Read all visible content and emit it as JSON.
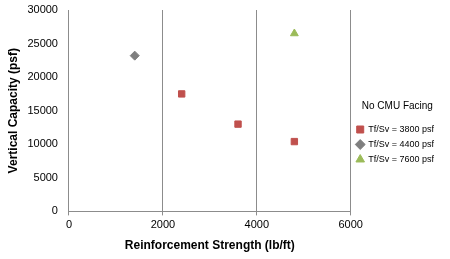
{
  "chart_data": {
    "type": "scatter",
    "x_label": "Reinforcement Strength (lb/ft)",
    "y_label": "Vertical Capacity (psf)",
    "annotation": "No CMU Facing",
    "xlim": [
      0,
      6000
    ],
    "xticks": [
      0,
      2000,
      4000,
      6000
    ],
    "ylim": [
      0,
      30000
    ],
    "yticks": [
      0,
      5000,
      10000,
      15000,
      20000,
      25000,
      30000
    ],
    "grid": true,
    "legend": "right",
    "series": [
      {
        "name": "Tf/Sv = 3800 psf",
        "color": "#c0504d",
        "marker": "square",
        "x": [
          2400,
          3600,
          4800
        ],
        "values": [
          17500,
          13000,
          10400
        ]
      },
      {
        "name": "Tf/Sv = 4400 psf",
        "color": "#7f7f7f",
        "marker": "diamond",
        "x": [
          1400
        ],
        "values": [
          23200
        ]
      },
      {
        "name": "Tf/Sv = 7600 psf",
        "color": "#9bbb59",
        "marker": "triangle",
        "x": [
          4800
        ],
        "values": [
          26500
        ]
      }
    ]
  }
}
